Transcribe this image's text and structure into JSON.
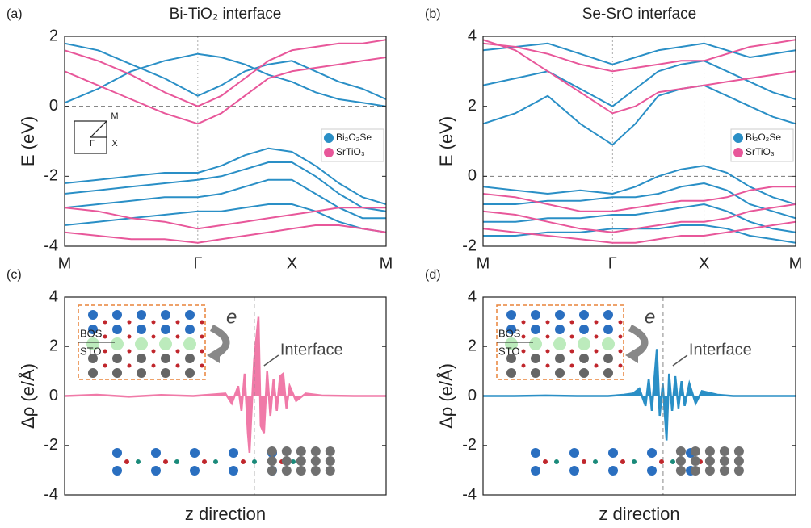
{
  "chart_data": [
    {
      "type": "bands",
      "panel_label": "(a)",
      "title": "Bi-TiO₂ interface",
      "ylabel": "E (eV)",
      "xlim": [
        0,
        3.414
      ],
      "xticks": [
        {
          "value": 0,
          "label": "M"
        },
        {
          "value": 1.414,
          "label": "Γ"
        },
        {
          "value": 2.414,
          "label": "X"
        },
        {
          "value": 3.414,
          "label": "M"
        }
      ],
      "ylim": [
        -4,
        2
      ],
      "yticks": [
        -4,
        -2,
        0,
        2
      ],
      "reference_line": 0,
      "legend": "right",
      "inset_labels": [
        "M",
        "X",
        "Γ"
      ],
      "x": [
        0,
        0.354,
        0.707,
        1.061,
        1.414,
        1.664,
        1.914,
        2.164,
        2.414,
        2.664,
        2.914,
        3.164,
        3.414
      ],
      "series": [
        {
          "name": "Bi₂O₂Se",
          "color": "#2a8fc6",
          "bands": [
            [
              0.1,
              0.5,
              1.0,
              1.3,
              1.5,
              1.4,
              1.2,
              0.9,
              0.7,
              0.4,
              0.2,
              0.1,
              0.0
            ],
            [
              1.8,
              1.6,
              1.2,
              0.8,
              0.3,
              0.6,
              1.0,
              1.2,
              1.3,
              1.0,
              0.7,
              0.5,
              0.2
            ],
            [
              -2.2,
              -2.1,
              -2.0,
              -1.9,
              -1.9,
              -1.7,
              -1.4,
              -1.2,
              -1.3,
              -1.7,
              -2.2,
              -2.6,
              -2.8
            ],
            [
              -2.5,
              -2.4,
              -2.3,
              -2.2,
              -2.1,
              -2.0,
              -1.8,
              -1.6,
              -1.6,
              -2.0,
              -2.5,
              -2.9,
              -3.0
            ],
            [
              -2.9,
              -2.8,
              -2.7,
              -2.6,
              -2.6,
              -2.5,
              -2.3,
              -2.1,
              -2.1,
              -2.5,
              -2.9,
              -3.2,
              -3.2
            ],
            [
              -3.4,
              -3.3,
              -3.2,
              -3.1,
              -3.0,
              -3.0,
              -2.9,
              -2.8,
              -2.8,
              -3.0,
              -3.3,
              -3.5,
              -3.6
            ]
          ]
        },
        {
          "name": "SrTiO₃",
          "color": "#e8579a",
          "bands": [
            [
              1.0,
              0.6,
              0.2,
              -0.2,
              -0.5,
              -0.2,
              0.3,
              0.8,
              1.0,
              1.1,
              1.2,
              1.3,
              1.4
            ],
            [
              1.6,
              1.3,
              0.9,
              0.4,
              0.0,
              0.3,
              0.8,
              1.3,
              1.6,
              1.7,
              1.8,
              1.8,
              1.9
            ],
            [
              -2.9,
              -3.0,
              -3.2,
              -3.3,
              -3.5,
              -3.4,
              -3.3,
              -3.2,
              -3.1,
              -3.0,
              -2.9,
              -2.9,
              -2.9
            ],
            [
              -3.6,
              -3.7,
              -3.8,
              -3.8,
              -3.9,
              -3.8,
              -3.7,
              -3.6,
              -3.5,
              -3.4,
              -3.4,
              -3.5,
              -3.6
            ]
          ]
        }
      ]
    },
    {
      "type": "bands",
      "panel_label": "(b)",
      "title": "Se-SrO interface",
      "ylabel": "E (eV)",
      "xlim": [
        0,
        3.414
      ],
      "xticks": [
        {
          "value": 0,
          "label": "M"
        },
        {
          "value": 1.414,
          "label": "Γ"
        },
        {
          "value": 2.414,
          "label": "X"
        },
        {
          "value": 3.414,
          "label": "M"
        }
      ],
      "ylim": [
        -2,
        4
      ],
      "yticks": [
        -2,
        0,
        2,
        4
      ],
      "reference_line": 0,
      "legend": "right",
      "x": [
        0,
        0.354,
        0.707,
        1.061,
        1.414,
        1.664,
        1.914,
        2.164,
        2.414,
        2.664,
        2.914,
        3.164,
        3.414
      ],
      "series": [
        {
          "name": "Bi₂O₂Se",
          "color": "#2a8fc6",
          "bands": [
            [
              1.5,
              1.8,
              2.3,
              1.5,
              0.9,
              1.5,
              2.3,
              2.5,
              2.6,
              2.3,
              2.0,
              1.7,
              1.5
            ],
            [
              2.6,
              2.8,
              3.0,
              2.5,
              2.0,
              2.5,
              3.0,
              3.2,
              3.3,
              3.0,
              2.7,
              2.4,
              2.2
            ],
            [
              3.6,
              3.7,
              3.8,
              3.5,
              3.2,
              3.4,
              3.6,
              3.7,
              3.8,
              3.6,
              3.4,
              3.5,
              3.6
            ],
            [
              -0.3,
              -0.4,
              -0.5,
              -0.4,
              -0.5,
              -0.3,
              0.0,
              0.2,
              0.3,
              0.1,
              -0.3,
              -0.6,
              -0.8
            ],
            [
              -0.8,
              -0.8,
              -0.7,
              -0.7,
              -0.6,
              -0.6,
              -0.5,
              -0.3,
              -0.2,
              -0.4,
              -0.8,
              -1.0,
              -1.2
            ],
            [
              -1.3,
              -1.3,
              -1.2,
              -1.2,
              -1.1,
              -1.1,
              -1.0,
              -0.9,
              -0.8,
              -1.0,
              -1.3,
              -1.5,
              -1.6
            ],
            [
              -1.7,
              -1.7,
              -1.6,
              -1.6,
              -1.5,
              -1.5,
              -1.5,
              -1.4,
              -1.4,
              -1.5,
              -1.7,
              -1.8,
              -1.9
            ]
          ]
        },
        {
          "name": "SrTiO₃",
          "color": "#e8579a",
          "bands": [
            [
              3.9,
              3.6,
              3.0,
              2.4,
              1.8,
              2.0,
              2.4,
              2.5,
              2.6,
              2.7,
              2.8,
              2.9,
              3.0
            ],
            [
              3.8,
              3.7,
              3.5,
              3.2,
              3.0,
              3.1,
              3.2,
              3.3,
              3.3,
              3.5,
              3.7,
              3.8,
              3.9
            ],
            [
              -0.5,
              -0.6,
              -0.8,
              -1.0,
              -1.0,
              -0.9,
              -0.8,
              -0.7,
              -0.7,
              -0.6,
              -0.4,
              -0.3,
              -0.3
            ],
            [
              -1.0,
              -1.1,
              -1.3,
              -1.5,
              -1.6,
              -1.5,
              -1.4,
              -1.3,
              -1.3,
              -1.2,
              -1.0,
              -0.9,
              -0.8
            ],
            [
              -1.5,
              -1.6,
              -1.7,
              -1.8,
              -1.9,
              -1.9,
              -1.8,
              -1.7,
              -1.7,
              -1.6,
              -1.5,
              -1.4,
              -1.3
            ]
          ]
        }
      ]
    },
    {
      "type": "area",
      "panel_label": "(c)",
      "ylabel": "Δρ (e/Å)",
      "xlabel": "z direction",
      "xlim": [
        0,
        100
      ],
      "ylim": [
        -4,
        4
      ],
      "yticks": [
        -4,
        -2,
        0,
        2,
        4
      ],
      "color": "#f07aa8",
      "interface_x": 59,
      "annotations": {
        "interface": "Interface",
        "electron": "e",
        "top_layer": "BOS",
        "bottom_layer": "STO"
      },
      "x": [
        0,
        10,
        20,
        30,
        40,
        45,
        50,
        52,
        54,
        55,
        56,
        57,
        57.5,
        58,
        59,
        60,
        60.3,
        61,
        62,
        63,
        64,
        65,
        66,
        67,
        68,
        69,
        70,
        72,
        75,
        80,
        90,
        100
      ],
      "values": [
        0,
        0.05,
        -0.03,
        0.04,
        0,
        0.05,
        0.1,
        -0.3,
        0.4,
        -0.6,
        0.9,
        -1.5,
        -2.3,
        -1.0,
        1.5,
        2.8,
        3.2,
        -1.2,
        -1.5,
        1.0,
        -0.8,
        0.7,
        -0.6,
        0.8,
        0.9,
        -0.5,
        0.4,
        -0.2,
        0.1,
        0.02,
        0,
        0
      ]
    },
    {
      "type": "area",
      "panel_label": "(d)",
      "ylabel": "Δρ (e/Å)",
      "xlabel": "z direction",
      "xlim": [
        0,
        100
      ],
      "ylim": [
        -4,
        4
      ],
      "yticks": [
        -4,
        -2,
        0,
        2,
        4
      ],
      "color": "#2a8fc6",
      "interface_x": 57.6,
      "annotations": {
        "interface": "Interface",
        "electron": "e",
        "top_layer": "BOS",
        "bottom_layer": "STO"
      },
      "x": [
        0,
        10,
        20,
        30,
        40,
        45,
        48,
        50,
        52,
        53,
        54,
        55,
        55.6,
        56.5,
        57.5,
        58.7,
        59.5,
        60.5,
        61.5,
        62.5,
        63.5,
        64.5,
        66,
        68,
        70,
        75,
        80,
        90,
        100
      ],
      "values": [
        0,
        0,
        0.02,
        0,
        0,
        0.05,
        0.1,
        0.3,
        -0.4,
        0.7,
        -0.6,
        1.0,
        1.9,
        -0.8,
        0.5,
        -1.8,
        0.9,
        -0.6,
        0.8,
        -0.5,
        0.6,
        -0.4,
        0.5,
        -0.3,
        0.2,
        0.05,
        0,
        0,
        0
      ]
    }
  ]
}
